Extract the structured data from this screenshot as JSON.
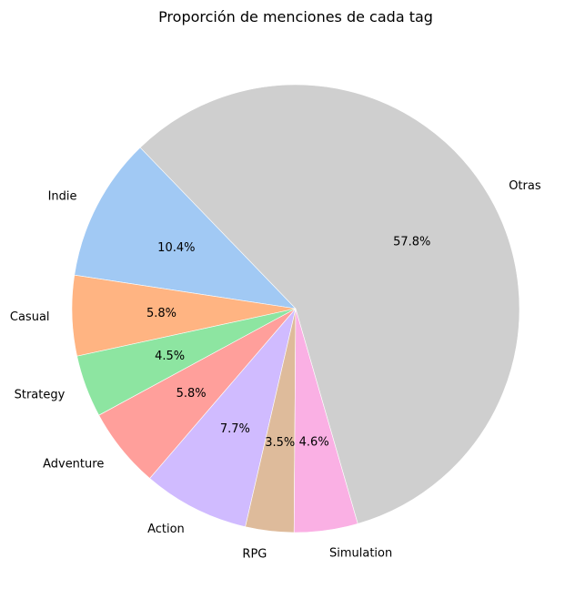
{
  "chart_data": {
    "type": "pie",
    "title": "Proporción de menciones de cada tag",
    "start_angle_deg": 134,
    "direction": "counterclockwise",
    "slices": [
      {
        "label": "Indie",
        "value": 10.4,
        "pct_label": "10.4%",
        "color": "#a1c9f4"
      },
      {
        "label": "Casual",
        "value": 5.8,
        "pct_label": "5.8%",
        "color": "#ffb482"
      },
      {
        "label": "Strategy",
        "value": 4.5,
        "pct_label": "4.5%",
        "color": "#8de5a1"
      },
      {
        "label": "Adventure",
        "value": 5.8,
        "pct_label": "5.8%",
        "color": "#ff9f9b"
      },
      {
        "label": "Action",
        "value": 7.7,
        "pct_label": "7.7%",
        "color": "#d0bbff"
      },
      {
        "label": "RPG",
        "value": 3.5,
        "pct_label": "3.5%",
        "color": "#debb9b"
      },
      {
        "label": "Simulation",
        "value": 4.6,
        "pct_label": "4.6%",
        "color": "#fab0e4"
      },
      {
        "label": "Otras",
        "value": 57.8,
        "pct_label": "57.8%",
        "color": "#cfcfcf"
      }
    ]
  }
}
